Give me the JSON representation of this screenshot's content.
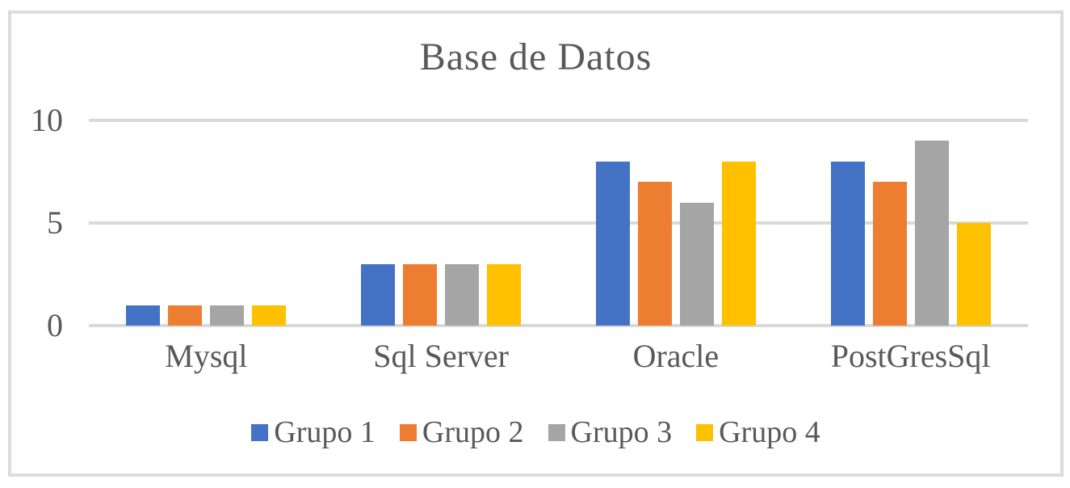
{
  "chart_data": {
    "type": "bar",
    "title": "Base de Datos",
    "categories": [
      "Mysql",
      "Sql Server",
      "Oracle",
      "PostGresSql"
    ],
    "series": [
      {
        "name": "Grupo 1",
        "color": "#4472C4",
        "values": [
          1,
          3,
          8,
          8
        ]
      },
      {
        "name": "Grupo 2",
        "color": "#ED7D31",
        "values": [
          1,
          3,
          7,
          7
        ]
      },
      {
        "name": "Grupo 3",
        "color": "#A5A5A5",
        "values": [
          1,
          3,
          6,
          9
        ]
      },
      {
        "name": "Grupo 4",
        "color": "#FFC000",
        "values": [
          1,
          3,
          8,
          5
        ]
      }
    ],
    "y_axis": {
      "ticks": [
        0,
        5,
        10
      ],
      "ylim": [
        0,
        10
      ],
      "gridlines": true,
      "gridline_color": "#d9d9d9"
    },
    "xlabel": "",
    "ylabel": "",
    "legend_position": "bottom",
    "text_color": "#595959",
    "frame_border_color": "#dcdcdc",
    "background_color": "#ffffff"
  }
}
